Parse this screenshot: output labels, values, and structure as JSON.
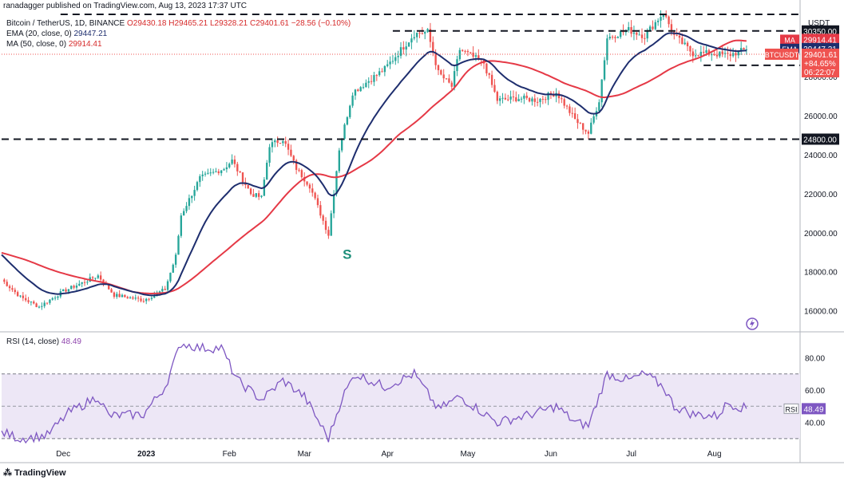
{
  "header": {
    "published_by": "ranadagger published on TradingView.com, Aug 13, 2023 17:37 UTC"
  },
  "legend": {
    "symbol_line": "Bitcoin / TetherUS, 1D, BINANCE",
    "ohlc": "O29430.18  H29465.21  L29328.21  C29401.61  −28.56 (−0.10%)",
    "ema_label": "EMA (20, close, 0)",
    "ema_value": "29447.21",
    "ma_label": "MA (50, close, 0)",
    "ma_value": "29914.41",
    "rsi_label": "RSI (14, close)",
    "rsi_value": "48.49"
  },
  "currency": "USDT",
  "annotation": "S",
  "branding": "TradingView",
  "colors": {
    "up": "#26a69a",
    "down": "#ef5350",
    "ema": "#1e2e6e",
    "ma": "#e53946",
    "rsi": "#7e57c2",
    "level": "#131722"
  },
  "chart_data": [
    {
      "type": "candlestick",
      "ylim": [
        15000,
        31200
      ],
      "yticks": [
        16000,
        18000,
        20000,
        22000,
        24000,
        26000,
        28000
      ],
      "xticks": [
        "Dec",
        "2023",
        "Feb",
        "Mar",
        "Apr",
        "May",
        "Jun",
        "Jul",
        "Aug"
      ],
      "xtick_dates": [
        "2022-12-01",
        "2023-01-01",
        "2023-02-01",
        "2023-03-01",
        "2023-04-01",
        "2023-05-01",
        "2023-06-01",
        "2023-07-01",
        "2023-08-01"
      ],
      "x_range": [
        "2022-11-08",
        "2023-09-02"
      ],
      "close_series_anchors": [
        [
          "2022-11-08",
          17600
        ],
        [
          "2022-11-15",
          16700
        ],
        [
          "2022-11-22",
          16200
        ],
        [
          "2022-12-01",
          17000
        ],
        [
          "2022-12-14",
          17800
        ],
        [
          "2022-12-20",
          16800
        ],
        [
          "2022-12-31",
          16550
        ],
        [
          "2023-01-08",
          17100
        ],
        [
          "2023-01-12",
          18800
        ],
        [
          "2023-01-14",
          20900
        ],
        [
          "2023-01-21",
          22800
        ],
        [
          "2023-01-30",
          23300
        ],
        [
          "2023-02-02",
          23700
        ],
        [
          "2023-02-09",
          22000
        ],
        [
          "2023-02-13",
          21800
        ],
        [
          "2023-02-16",
          24500
        ],
        [
          "2023-02-21",
          24800
        ],
        [
          "2023-02-26",
          23300
        ],
        [
          "2023-03-03",
          22400
        ],
        [
          "2023-03-10",
          19900
        ],
        [
          "2023-03-14",
          24300
        ],
        [
          "2023-03-19",
          27200
        ],
        [
          "2023-03-31",
          28400
        ],
        [
          "2023-04-11",
          30200
        ],
        [
          "2023-04-16",
          30300
        ],
        [
          "2023-04-20",
          28200
        ],
        [
          "2023-04-25",
          27500
        ],
        [
          "2023-04-28",
          29400
        ],
        [
          "2023-05-07",
          28700
        ],
        [
          "2023-05-12",
          26800
        ],
        [
          "2023-05-20",
          26900
        ],
        [
          "2023-05-27",
          26800
        ],
        [
          "2023-06-03",
          27200
        ],
        [
          "2023-06-10",
          25800
        ],
        [
          "2023-06-15",
          25100
        ],
        [
          "2023-06-19",
          26800
        ],
        [
          "2023-06-22",
          30000
        ],
        [
          "2023-06-30",
          30400
        ],
        [
          "2023-07-06",
          30100
        ],
        [
          "2023-07-13",
          31300
        ],
        [
          "2023-07-17",
          30100
        ],
        [
          "2023-07-24",
          29200
        ],
        [
          "2023-07-31",
          29200
        ],
        [
          "2023-08-06",
          29100
        ],
        [
          "2023-08-13",
          29401
        ]
      ],
      "horizontal_levels": [
        {
          "label": "30350.00",
          "value": 30350,
          "from": "2023-04-03",
          "to": "2023-09-02"
        },
        {
          "label": "28585.00",
          "value": 28585,
          "from": "2023-07-28",
          "to": "2023-09-02"
        },
        {
          "label": "24800.00",
          "value": 24800,
          "from": "2022-11-08",
          "to": "2023-09-02"
        },
        {
          "label": "31200",
          "value": 31200,
          "from": "2022-11-30",
          "to": "2023-09-02"
        }
      ],
      "ema_20_last": 29447.21,
      "ma_50_last": 29914.41,
      "last_price": 29401.61,
      "last_price_label": "BTCUSDT",
      "last_change": "+84.65%",
      "countdown": "06:22:07",
      "annotation": {
        "text": "S",
        "date": "2023-03-11",
        "value": 18900
      }
    },
    {
      "type": "line",
      "name": "RSI (14, close)",
      "ylim": [
        25,
        95
      ],
      "yticks": [
        40,
        60,
        80
      ],
      "bands": [
        30,
        70
      ],
      "midline": 50,
      "last": 48.49,
      "series_anchors": [
        [
          "2022-11-08",
          34
        ],
        [
          "2022-11-15",
          30
        ],
        [
          "2022-11-25",
          32
        ],
        [
          "2022-12-03",
          46
        ],
        [
          "2022-12-14",
          56
        ],
        [
          "2022-12-18",
          44
        ],
        [
          "2022-12-31",
          45
        ],
        [
          "2023-01-08",
          62
        ],
        [
          "2023-01-14",
          89
        ],
        [
          "2023-01-21",
          86
        ],
        [
          "2023-01-29",
          86
        ],
        [
          "2023-02-04",
          66
        ],
        [
          "2023-02-13",
          54
        ],
        [
          "2023-02-21",
          66
        ],
        [
          "2023-03-01",
          56
        ],
        [
          "2023-03-10",
          30
        ],
        [
          "2023-03-15",
          55
        ],
        [
          "2023-03-20",
          70
        ],
        [
          "2023-03-31",
          62
        ],
        [
          "2023-04-11",
          70
        ],
        [
          "2023-04-20",
          48
        ],
        [
          "2023-04-28",
          56
        ],
        [
          "2023-05-12",
          40
        ],
        [
          "2023-05-27",
          46
        ],
        [
          "2023-06-03",
          50
        ],
        [
          "2023-06-10",
          40
        ],
        [
          "2023-06-15",
          38
        ],
        [
          "2023-06-22",
          70
        ],
        [
          "2023-06-30",
          66
        ],
        [
          "2023-07-06",
          70
        ],
        [
          "2023-07-13",
          62
        ],
        [
          "2023-07-17",
          50
        ],
        [
          "2023-07-24",
          45
        ],
        [
          "2023-08-02",
          44
        ],
        [
          "2023-08-06",
          52
        ],
        [
          "2023-08-13",
          48.49
        ]
      ]
    }
  ]
}
